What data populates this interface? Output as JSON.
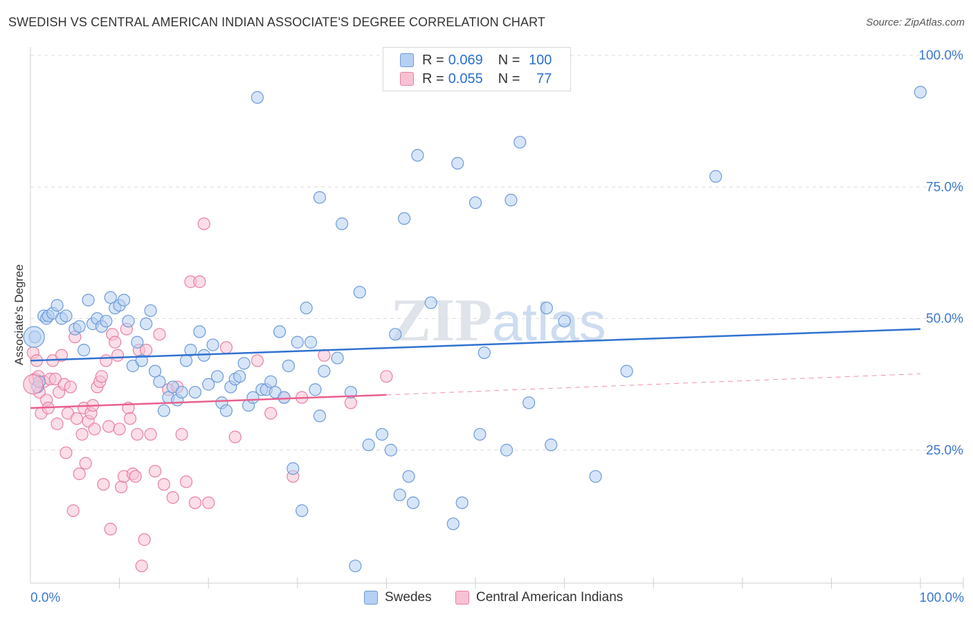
{
  "header": {
    "title": "SWEDISH VS CENTRAL AMERICAN INDIAN ASSOCIATE'S DEGREE CORRELATION CHART",
    "source": "Source: ZipAtlas.com"
  },
  "legend": {
    "rows": [
      {
        "r_label": "R =",
        "r_value": "0.069",
        "n_label": "N =",
        "n_value": "100"
      },
      {
        "r_label": "R =",
        "r_value": "0.055",
        "n_label": "N =",
        "n_value": "77"
      }
    ]
  },
  "colors": {
    "blue_fill": "#b6d0f3",
    "blue_stroke": "#6c9ad8",
    "blue_line": "#2f72d0",
    "pink_fill": "#f8c2d3",
    "pink_stroke": "#e87fa3",
    "pink_line": "#e8608e",
    "tick_text": "#3c78d0",
    "grid": "#dcdcdc"
  },
  "chart_data": {
    "type": "scatter",
    "title": "SWEDISH VS CENTRAL AMERICAN INDIAN ASSOCIATE'S DEGREE CORRELATION CHART",
    "xlabel": "",
    "ylabel": "Associate's Degree",
    "xlim": [
      0,
      100
    ],
    "ylim": [
      0,
      100
    ],
    "x_tick_labels": [
      "0.0%",
      "100.0%"
    ],
    "y_tick_labels": [
      "100.0%",
      "75.0%",
      "50.0%",
      "25.0%"
    ],
    "y_ticks": [
      100,
      75,
      50,
      25
    ],
    "grid": true,
    "watermark": "ZIPatlas",
    "legend_position": "top-center",
    "series": [
      {
        "name": "Swedes",
        "color": "#6c9ad8",
        "r": 0.069,
        "n": 100,
        "trend": {
          "x": [
            0,
            100
          ],
          "y": [
            42.0,
            48.0
          ],
          "style": "solid"
        },
        "points": [
          [
            0.5,
            46.5
          ],
          [
            0.8,
            37
          ],
          [
            1.0,
            38
          ],
          [
            1.5,
            50.5
          ],
          [
            1.8,
            50
          ],
          [
            2.0,
            50.5
          ],
          [
            2.5,
            51
          ],
          [
            3.0,
            52.5
          ],
          [
            3.5,
            50
          ],
          [
            4.0,
            50.5
          ],
          [
            5.0,
            48
          ],
          [
            5.5,
            48.5
          ],
          [
            6.0,
            44
          ],
          [
            6.5,
            53.5
          ],
          [
            7.0,
            49
          ],
          [
            7.5,
            50
          ],
          [
            8.0,
            48.5
          ],
          [
            8.5,
            49.5
          ],
          [
            9.0,
            54
          ],
          [
            9.5,
            52
          ],
          [
            10.0,
            52.5
          ],
          [
            10.5,
            53.5
          ],
          [
            11.0,
            49.5
          ],
          [
            11.5,
            41
          ],
          [
            12.0,
            45.5
          ],
          [
            12.5,
            42
          ],
          [
            13.0,
            49
          ],
          [
            13.5,
            51.5
          ],
          [
            14.0,
            40
          ],
          [
            14.5,
            38
          ],
          [
            15.0,
            32.5
          ],
          [
            15.5,
            35
          ],
          [
            16.0,
            37
          ],
          [
            16.5,
            34.5
          ],
          [
            17.0,
            36
          ],
          [
            17.5,
            42
          ],
          [
            18.0,
            44
          ],
          [
            18.5,
            36
          ],
          [
            19.0,
            47.5
          ],
          [
            19.5,
            43
          ],
          [
            20.0,
            37.5
          ],
          [
            20.5,
            45
          ],
          [
            21.0,
            39
          ],
          [
            21.5,
            34
          ],
          [
            22.0,
            32.5
          ],
          [
            22.5,
            37
          ],
          [
            23.0,
            38.5
          ],
          [
            23.5,
            39
          ],
          [
            24.0,
            41.5
          ],
          [
            24.5,
            33.5
          ],
          [
            25.0,
            35
          ],
          [
            25.5,
            92
          ],
          [
            26.0,
            36.5
          ],
          [
            26.5,
            36.5
          ],
          [
            27.0,
            38
          ],
          [
            27.5,
            36
          ],
          [
            28.0,
            47.5
          ],
          [
            28.5,
            35
          ],
          [
            29.0,
            41
          ],
          [
            29.5,
            21.5
          ],
          [
            30.0,
            45.5
          ],
          [
            30.5,
            13.5
          ],
          [
            31.0,
            52
          ],
          [
            31.5,
            45.5
          ],
          [
            32.0,
            36.5
          ],
          [
            32.5,
            31.5
          ],
          [
            32.5,
            73
          ],
          [
            33.0,
            40
          ],
          [
            34.5,
            42.5
          ],
          [
            35.0,
            68
          ],
          [
            36.0,
            36
          ],
          [
            36.5,
            3
          ],
          [
            37.0,
            55
          ],
          [
            38.0,
            26
          ],
          [
            39.5,
            28
          ],
          [
            40.5,
            25
          ],
          [
            41.0,
            47
          ],
          [
            41.5,
            16.5
          ],
          [
            42.0,
            69
          ],
          [
            42.5,
            20
          ],
          [
            43.0,
            15
          ],
          [
            43.5,
            81
          ],
          [
            45.0,
            53
          ],
          [
            47.5,
            11
          ],
          [
            48.0,
            79.5
          ],
          [
            48.5,
            15
          ],
          [
            50.0,
            72
          ],
          [
            50.5,
            28
          ],
          [
            51.0,
            43.5
          ],
          [
            53.5,
            25
          ],
          [
            54.0,
            72.5
          ],
          [
            55.0,
            83.5
          ],
          [
            56.0,
            34
          ],
          [
            58.0,
            52
          ],
          [
            58.5,
            26
          ],
          [
            60.0,
            49.5
          ],
          [
            63.5,
            20
          ],
          [
            67.0,
            40
          ],
          [
            77.0,
            77
          ],
          [
            100.0,
            93
          ]
        ]
      },
      {
        "name": "Central American Indians",
        "color": "#e87fa3",
        "r": 0.055,
        "n": 77,
        "trend": {
          "x": [
            0,
            40
          ],
          "y": [
            33.0,
            35.5
          ],
          "style": "solid",
          "dashed_to": [
            100,
            39.5
          ]
        },
        "points": [
          [
            0.3,
            43.5
          ],
          [
            0.5,
            38.5
          ],
          [
            0.7,
            42
          ],
          [
            0.9,
            39
          ],
          [
            1.0,
            36
          ],
          [
            1.2,
            32
          ],
          [
            1.5,
            38
          ],
          [
            1.8,
            34.5
          ],
          [
            2.0,
            33
          ],
          [
            2.2,
            38.5
          ],
          [
            2.5,
            42
          ],
          [
            2.8,
            38.5
          ],
          [
            3.0,
            30
          ],
          [
            3.2,
            36
          ],
          [
            3.5,
            43
          ],
          [
            3.8,
            37.5
          ],
          [
            4.0,
            24.5
          ],
          [
            4.2,
            32
          ],
          [
            4.5,
            37
          ],
          [
            4.8,
            13.5
          ],
          [
            5.0,
            46.5
          ],
          [
            5.2,
            31
          ],
          [
            5.5,
            20.5
          ],
          [
            5.8,
            28
          ],
          [
            6.0,
            33
          ],
          [
            6.2,
            22.5
          ],
          [
            6.5,
            30.5
          ],
          [
            6.8,
            32
          ],
          [
            7.0,
            33.5
          ],
          [
            7.2,
            29
          ],
          [
            7.5,
            37
          ],
          [
            7.8,
            38
          ],
          [
            8.0,
            39
          ],
          [
            8.2,
            18.5
          ],
          [
            8.5,
            42
          ],
          [
            8.8,
            29.5
          ],
          [
            9.0,
            10
          ],
          [
            9.2,
            47
          ],
          [
            9.5,
            45.5
          ],
          [
            9.8,
            43
          ],
          [
            10.0,
            29
          ],
          [
            10.2,
            18
          ],
          [
            10.5,
            20
          ],
          [
            10.8,
            48
          ],
          [
            11.0,
            33
          ],
          [
            11.2,
            31
          ],
          [
            11.5,
            20.5
          ],
          [
            11.8,
            20
          ],
          [
            12.0,
            28
          ],
          [
            12.2,
            44
          ],
          [
            12.5,
            3
          ],
          [
            12.8,
            8
          ],
          [
            13.0,
            44
          ],
          [
            13.5,
            28
          ],
          [
            14.0,
            21
          ],
          [
            14.5,
            47
          ],
          [
            15.0,
            18.5
          ],
          [
            15.5,
            36.5
          ],
          [
            16.0,
            16
          ],
          [
            16.5,
            37
          ],
          [
            17.0,
            28
          ],
          [
            17.5,
            19
          ],
          [
            18.0,
            57
          ],
          [
            18.5,
            15
          ],
          [
            19.0,
            57
          ],
          [
            19.5,
            68
          ],
          [
            20.0,
            15
          ],
          [
            22.0,
            44.5
          ],
          [
            23.0,
            27.5
          ],
          [
            25.5,
            42
          ],
          [
            27.0,
            32
          ],
          [
            28.5,
            35
          ],
          [
            29.5,
            20
          ],
          [
            30.5,
            35
          ],
          [
            33.0,
            43
          ],
          [
            36.0,
            34
          ],
          [
            40.0,
            39
          ]
        ]
      }
    ]
  },
  "bottom_legend": {
    "items": [
      {
        "label": "Swedes"
      },
      {
        "label": "Central American Indians"
      }
    ]
  }
}
